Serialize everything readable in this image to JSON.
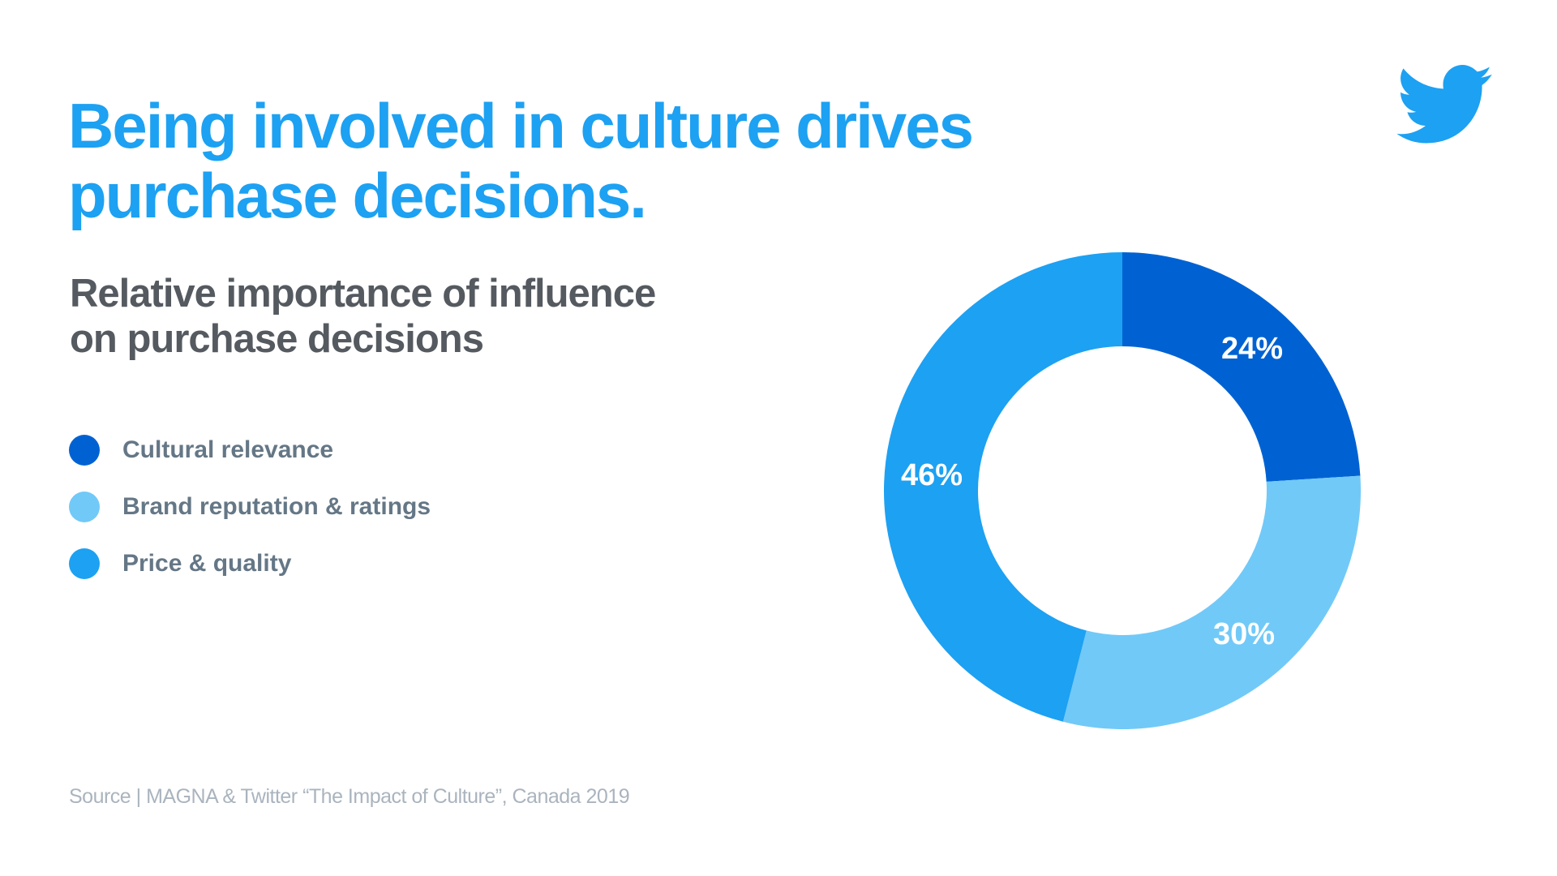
{
  "title_lines": [
    "Being involved in culture drives",
    "purchase decisions."
  ],
  "chart_data": {
    "type": "pie",
    "variant": "donut",
    "title": "Relative importance of influence on purchase decisions",
    "title_lines": [
      "Relative importance of influence",
      "on purchase decisions"
    ],
    "categories": [
      "Cultural relevance",
      "Brand reputation & ratings",
      "Price & quality"
    ],
    "values": [
      24,
      30,
      46
    ],
    "labels": [
      "24%",
      "30%",
      "46%"
    ],
    "colors": [
      "#0062d2",
      "#71c9f8",
      "#1da1f2"
    ],
    "legend_position": "left"
  },
  "source": "Source | MAGNA & Twitter “The Impact of Culture”, Canada 2019",
  "logo": {
    "icon": "twitter-bird-icon",
    "color": "#1da1f2"
  }
}
